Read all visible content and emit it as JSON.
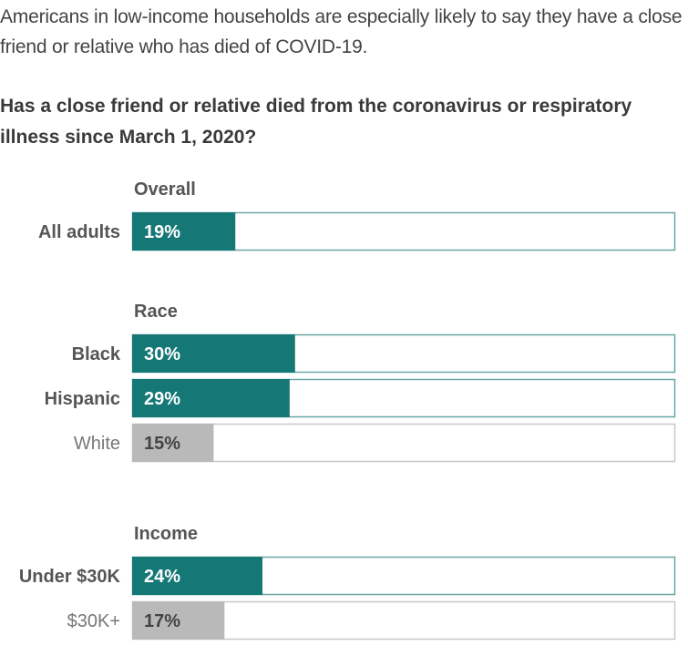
{
  "intro": "Americans in low-income households are especially likely to say they have a close friend or relative who has died of COVID-19.",
  "question": "Has a close friend or relative died from the coronavirus or respiratory illness since March 1, 2020?",
  "colors": {
    "highlight": "#167777",
    "muted": "#b9b9b9",
    "bar_border": "#6aa6a6",
    "muted_border": "#c8c8c8",
    "label_dark": "#555555",
    "label_muted": "#777777"
  },
  "chart_data": {
    "type": "bar",
    "orientation": "horizontal",
    "title": "Has a close friend or relative died from the coronavirus or respiratory illness since March 1, 2020?",
    "xlim": [
      0,
      100
    ],
    "unit": "%",
    "groups": [
      {
        "name": "Overall",
        "bars": [
          {
            "label": "All adults",
            "value": 19,
            "display": "19%",
            "highlight": true
          }
        ]
      },
      {
        "name": "Race",
        "bars": [
          {
            "label": "Black",
            "value": 30,
            "display": "30%",
            "highlight": true
          },
          {
            "label": "Hispanic",
            "value": 29,
            "display": "29%",
            "highlight": true
          },
          {
            "label": "White",
            "value": 15,
            "display": "15%",
            "highlight": false
          }
        ]
      },
      {
        "name": "Income",
        "bars": [
          {
            "label": "Under $30K",
            "value": 24,
            "display": "24%",
            "highlight": true
          },
          {
            "label": "$30K+",
            "value": 17,
            "display": "17%",
            "highlight": false
          }
        ]
      }
    ]
  }
}
